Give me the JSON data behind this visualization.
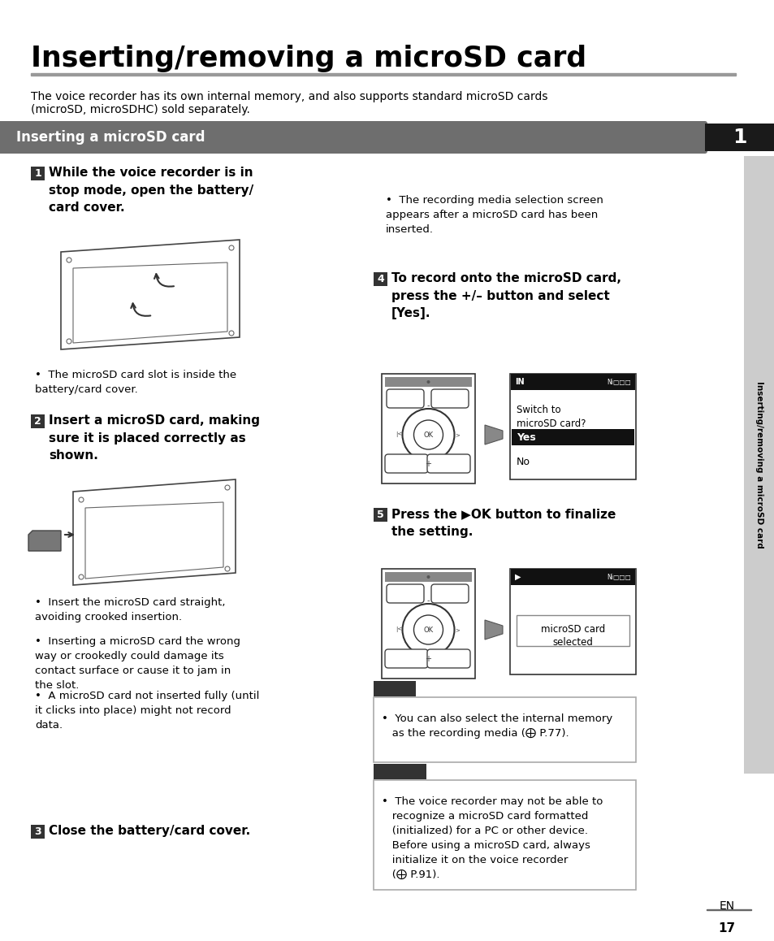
{
  "title": "Inserting/removing a microSD card",
  "subtitle_line1": "The voice recorder has its own internal memory, and also supports standard microSD cards",
  "subtitle_line2": "(microSD, microSDHC) sold separately.",
  "section_header": "Inserting a microSD card",
  "sidebar_text": "Inserting/removing a microSD card",
  "page_number": "17",
  "chapter_number": "1",
  "step1_num": "1",
  "step1_text_bold": "While the voice recorder is in\nstop mode, open the battery/\ncard cover.",
  "step1_bullet": "The microSD card slot is inside the\nbattery/card cover.",
  "step2_num": "2",
  "step2_text_bold": "Insert a microSD card, making\nsure it is placed correctly as\nshown.",
  "step2_b1": "Insert the microSD card straight,\navoiding crooked insertion.",
  "step2_b2": "Inserting a microSD card the wrong\nway or crookedly could damage its\ncontact surface or cause it to jam in\nthe slot.",
  "step2_b3": "A microSD card not inserted fully (until\nit clicks into place) might not record\ndata.",
  "step3_num": "3",
  "step3_text_bold": "Close the battery/card cover.",
  "step3_bullet": "The recording media selection screen\nappears after a microSD card has been\ninserted.",
  "step4_num": "4",
  "step4_text_bold": "To record onto the microSD card,\npress the +/– button and select\n[Yes].",
  "step5_num": "5",
  "step5_text_bold": "Press the ▶OK button to finalize\nthe setting.",
  "tip_text": "•  You can also select the internal memory\n   as the recording media (⨁ P.77).",
  "note_text": "•  The voice recorder may not be able to\n   recognize a microSD card formatted\n   (initialized) for a PC or other device.\n   Before using a microSD card, always\n   initialize it on the voice recorder\n   (⨁ P.91).",
  "bg": "#ffffff",
  "black": "#000000",
  "dark_gray": "#333333",
  "mid_gray": "#666666",
  "light_gray": "#aaaaaa",
  "white": "#ffffff",
  "header_bar_color": "#6e6e6e",
  "chapter_box_color": "#1a1a1a",
  "sidebar_bg": "#888888"
}
